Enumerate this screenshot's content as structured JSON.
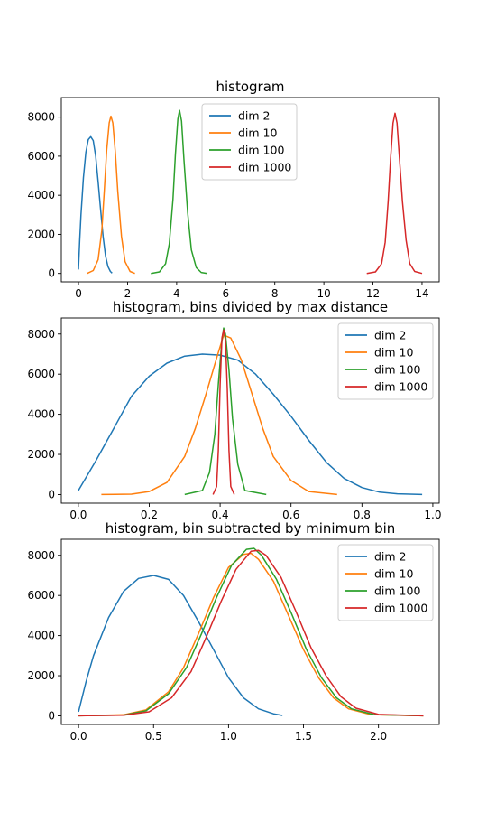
{
  "chart_data": [
    {
      "type": "line",
      "title": "histogram",
      "xlim": [
        -0.7,
        14.7
      ],
      "ylim": [
        -430,
        9000
      ],
      "xticks": [
        0,
        2,
        4,
        6,
        8,
        10,
        12,
        14
      ],
      "yticks": [
        0,
        2000,
        4000,
        6000,
        8000
      ],
      "xtick_labels": [
        "0",
        "2",
        "4",
        "6",
        "8",
        "10",
        "12",
        "14"
      ],
      "ytick_labels": [
        "0",
        "2000",
        "4000",
        "6000",
        "8000"
      ],
      "legend": "upper-center",
      "series": [
        {
          "name": "dim 2",
          "color": "#1f77b4",
          "x": [
            0.0,
            0.05,
            0.1,
            0.2,
            0.3,
            0.4,
            0.5,
            0.6,
            0.7,
            0.8,
            0.9,
            1.0,
            1.1,
            1.2,
            1.3,
            1.37
          ],
          "y": [
            200,
            1700,
            3000,
            4900,
            6200,
            6850,
            7000,
            6800,
            6000,
            4700,
            3300,
            1900,
            900,
            350,
            100,
            20
          ]
        },
        {
          "name": "dim 10",
          "color": "#ff7f0e",
          "x": [
            0.35,
            0.6,
            0.8,
            0.95,
            1.05,
            1.15,
            1.25,
            1.32,
            1.4,
            1.5,
            1.6,
            1.75,
            1.9,
            2.1,
            2.3
          ],
          "y": [
            0,
            150,
            700,
            2200,
            4200,
            6300,
            7700,
            8050,
            7700,
            6200,
            4200,
            1900,
            600,
            100,
            0
          ]
        },
        {
          "name": "dim 100",
          "color": "#2ca02c",
          "x": [
            2.95,
            3.3,
            3.55,
            3.7,
            3.85,
            3.95,
            4.05,
            4.12,
            4.2,
            4.3,
            4.45,
            4.6,
            4.8,
            5.0,
            5.25
          ],
          "y": [
            0,
            80,
            500,
            1500,
            3800,
            6100,
            7900,
            8350,
            7800,
            5800,
            3100,
            1200,
            300,
            50,
            0
          ]
        },
        {
          "name": "dim 1000",
          "color": "#d62728",
          "x": [
            11.75,
            12.1,
            12.35,
            12.5,
            12.62,
            12.72,
            12.82,
            12.9,
            12.98,
            13.08,
            13.2,
            13.35,
            13.5,
            13.7,
            14.0
          ],
          "y": [
            0,
            80,
            500,
            1600,
            3700,
            5900,
            7700,
            8200,
            7700,
            5900,
            3700,
            1700,
            500,
            100,
            0
          ]
        }
      ]
    },
    {
      "type": "line",
      "title": "histogram, bins divided by max distance",
      "xlim": [
        -0.048,
        1.018
      ],
      "ylim": [
        -430,
        8800
      ],
      "xticks": [
        0.0,
        0.2,
        0.4,
        0.6,
        0.8,
        1.0
      ],
      "yticks": [
        0,
        2000,
        4000,
        6000,
        8000
      ],
      "xtick_labels": [
        "0.0",
        "0.2",
        "0.4",
        "0.6",
        "0.8",
        "1.0"
      ],
      "ytick_labels": [
        "0",
        "2000",
        "4000",
        "6000",
        "8000"
      ],
      "legend": "upper-right",
      "series": [
        {
          "name": "dim 2",
          "color": "#1f77b4",
          "x": [
            0.0,
            0.05,
            0.1,
            0.15,
            0.2,
            0.25,
            0.3,
            0.35,
            0.4,
            0.45,
            0.5,
            0.55,
            0.6,
            0.65,
            0.7,
            0.75,
            0.8,
            0.85,
            0.9,
            0.97
          ],
          "y": [
            200,
            1700,
            3300,
            4900,
            5900,
            6550,
            6900,
            7000,
            6950,
            6700,
            6000,
            5000,
            3900,
            2700,
            1600,
            800,
            350,
            120,
            40,
            0
          ]
        },
        {
          "name": "dim 10",
          "color": "#ff7f0e",
          "x": [
            0.065,
            0.15,
            0.2,
            0.25,
            0.3,
            0.33,
            0.36,
            0.39,
            0.41,
            0.43,
            0.46,
            0.49,
            0.52,
            0.55,
            0.6,
            0.65,
            0.73
          ],
          "y": [
            0,
            20,
            150,
            600,
            1900,
            3300,
            5000,
            6800,
            7950,
            7800,
            6700,
            5000,
            3300,
            1900,
            700,
            150,
            0
          ]
        },
        {
          "name": "dim 100",
          "color": "#2ca02c",
          "x": [
            0.3,
            0.35,
            0.37,
            0.385,
            0.395,
            0.405,
            0.41,
            0.415,
            0.425,
            0.435,
            0.45,
            0.47,
            0.53
          ],
          "y": [
            0,
            200,
            1100,
            3000,
            5500,
            7700,
            8300,
            8000,
            6200,
            3800,
            1500,
            200,
            0
          ]
        },
        {
          "name": "dim 1000",
          "color": "#d62728",
          "x": [
            0.38,
            0.39,
            0.395,
            0.4,
            0.405,
            0.41,
            0.415,
            0.42,
            0.425,
            0.43,
            0.44
          ],
          "y": [
            0,
            400,
            2200,
            5500,
            7800,
            8200,
            7700,
            5300,
            2200,
            400,
            0
          ]
        }
      ]
    },
    {
      "type": "line",
      "title": "histogram, bin subtracted by minimum bin",
      "xlim": [
        -0.115,
        2.405
      ],
      "ylim": [
        -430,
        8800
      ],
      "xticks": [
        0.0,
        0.5,
        1.0,
        1.5,
        2.0
      ],
      "yticks": [
        0,
        2000,
        4000,
        6000,
        8000
      ],
      "xtick_labels": [
        "0.0",
        "0.5",
        "1.0",
        "1.5",
        "2.0"
      ],
      "ytick_labels": [
        "0",
        "2000",
        "4000",
        "6000",
        "8000"
      ],
      "legend": "upper-right",
      "series": [
        {
          "name": "dim 2",
          "color": "#1f77b4",
          "x": [
            0.0,
            0.05,
            0.1,
            0.2,
            0.3,
            0.4,
            0.5,
            0.6,
            0.7,
            0.8,
            0.9,
            1.0,
            1.1,
            1.2,
            1.3,
            1.36
          ],
          "y": [
            200,
            1700,
            3000,
            4900,
            6200,
            6850,
            7000,
            6800,
            6000,
            4700,
            3300,
            1900,
            900,
            350,
            100,
            20
          ]
        },
        {
          "name": "dim 10",
          "color": "#ff7f0e",
          "x": [
            0.0,
            0.3,
            0.45,
            0.6,
            0.7,
            0.8,
            0.9,
            1.0,
            1.1,
            1.15,
            1.2,
            1.3,
            1.4,
            1.5,
            1.6,
            1.7,
            1.8,
            1.95,
            2.3
          ],
          "y": [
            0,
            50,
            300,
            1200,
            2400,
            4100,
            5900,
            7400,
            8050,
            8100,
            7800,
            6700,
            5000,
            3300,
            1900,
            900,
            350,
            60,
            0
          ]
        },
        {
          "name": "dim 100",
          "color": "#2ca02c",
          "x": [
            0.0,
            0.3,
            0.45,
            0.6,
            0.72,
            0.82,
            0.92,
            1.02,
            1.12,
            1.17,
            1.22,
            1.32,
            1.42,
            1.52,
            1.62,
            1.72,
            1.82,
            1.97,
            2.3
          ],
          "y": [
            0,
            40,
            250,
            1100,
            2400,
            4100,
            5900,
            7500,
            8300,
            8350,
            8000,
            6800,
            5100,
            3300,
            1900,
            900,
            350,
            60,
            0
          ]
        },
        {
          "name": "dim 1000",
          "color": "#d62728",
          "x": [
            0.0,
            0.3,
            0.47,
            0.62,
            0.75,
            0.85,
            0.95,
            1.05,
            1.15,
            1.2,
            1.25,
            1.35,
            1.45,
            1.55,
            1.65,
            1.75,
            1.85,
            2.0,
            2.3
          ],
          "y": [
            0,
            30,
            200,
            900,
            2200,
            3900,
            5700,
            7300,
            8200,
            8250,
            8000,
            6900,
            5200,
            3400,
            2000,
            950,
            380,
            70,
            0
          ]
        }
      ]
    }
  ]
}
